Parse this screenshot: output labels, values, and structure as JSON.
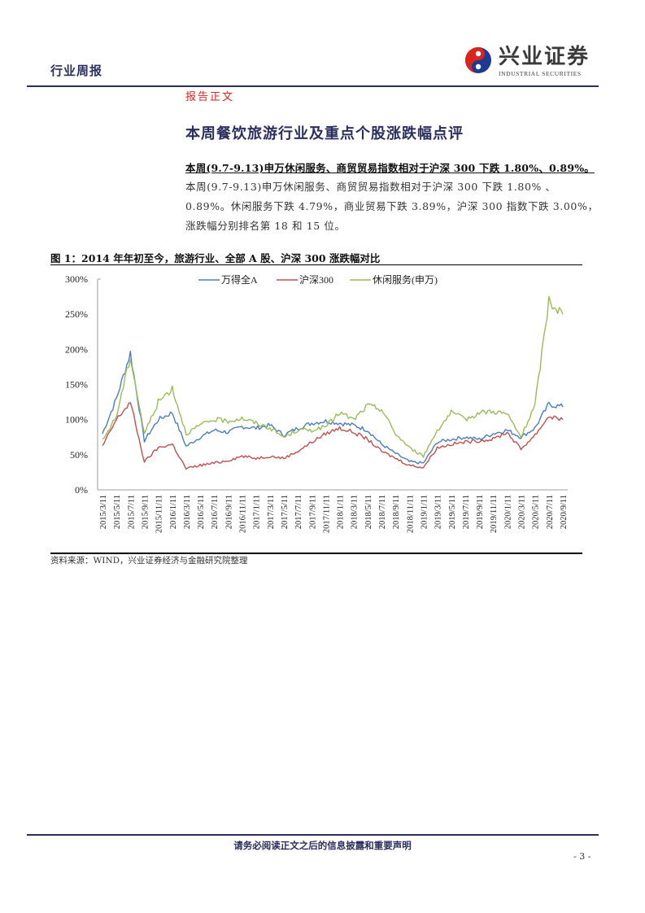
{
  "header": {
    "report_type": "行业周报",
    "logo": {
      "cn": "兴业证券",
      "en": "INDUSTRIAL SECURITIES",
      "colors": {
        "red": "#d9261c",
        "blue": "#1f3a93"
      }
    }
  },
  "section_label": "报告正文",
  "main_heading": "本周餐饮旅游行业及重点个股涨跌幅点评",
  "summary": "本周(9.7-9.13)申万休闲服务、商贸贸易指数相对于沪深 300 下跌 1.80%、0.89%。",
  "body_text": "本周(9.7-9.13)申万休闲服务、商贸贸易指数相对于沪深 300 下跌 1.80% 、0.89%。休闲服务下跌 4.79%，商业贸易下跌 3.89%，沪深 300 指数下跌 3.00%，涨跌幅分别排名第 18 和 15 位。",
  "figure": {
    "caption": "图 1：2014 年年初至今，旅游行业、全部 A 股、沪深 300 涨跌幅对比",
    "source": "资料来源：WIND，兴业证券经济与金融研究院整理"
  },
  "chart_data": {
    "type": "line",
    "title": "",
    "xlabel": "",
    "ylabel": "",
    "ylim": [
      0,
      300
    ],
    "y_ticks": [
      "0%",
      "50%",
      "100%",
      "150%",
      "200%",
      "250%",
      "300%"
    ],
    "grid": false,
    "legend_position": "top",
    "categories": [
      "2015/3/11",
      "2015/5/11",
      "2015/7/11",
      "2015/9/11",
      "2015/11/11",
      "2016/1/11",
      "2016/3/11",
      "2016/5/11",
      "2016/7/11",
      "2016/9/11",
      "2016/11/11",
      "2017/1/11",
      "2017/3/11",
      "2017/5/11",
      "2017/7/11",
      "2017/9/11",
      "2017/11/11",
      "2018/1/11",
      "2018/3/11",
      "2018/5/11",
      "2018/7/11",
      "2018/9/11",
      "2018/11/11",
      "2019/1/11",
      "2019/3/11",
      "2019/5/11",
      "2019/7/11",
      "2019/9/11",
      "2019/11/11",
      "2020/1/11",
      "2020/3/11",
      "2020/5/11",
      "2020/7/11",
      "2020/9/11"
    ],
    "series": [
      {
        "name": "万得全A",
        "color": "#4a7ebb",
        "values": [
          80,
          130,
          195,
          70,
          100,
          110,
          62,
          75,
          85,
          82,
          90,
          88,
          92,
          78,
          88,
          95,
          98,
          95,
          92,
          85,
          65,
          52,
          40,
          38,
          68,
          72,
          75,
          72,
          80,
          85,
          75,
          88,
          122,
          118
        ]
      },
      {
        "name": "沪深300",
        "color": "#c0504d",
        "values": [
          62,
          100,
          125,
          40,
          60,
          65,
          30,
          35,
          38,
          42,
          48,
          45,
          48,
          45,
          55,
          68,
          80,
          88,
          82,
          72,
          55,
          45,
          35,
          32,
          60,
          65,
          68,
          70,
          72,
          82,
          58,
          78,
          105,
          100
        ]
      },
      {
        "name": "休闲服务(申万)",
        "color": "#9bbb59",
        "values": [
          70,
          105,
          190,
          80,
          125,
          145,
          80,
          92,
          100,
          98,
          102,
          95,
          88,
          75,
          85,
          85,
          90,
          110,
          100,
          120,
          115,
          80,
          60,
          48,
          85,
          110,
          100,
          110,
          112,
          108,
          75,
          120,
          270,
          250
        ]
      }
    ]
  },
  "footer": {
    "note": "请务必阅读正文之后的信息披露和重要声明",
    "page": "- 3 -"
  }
}
